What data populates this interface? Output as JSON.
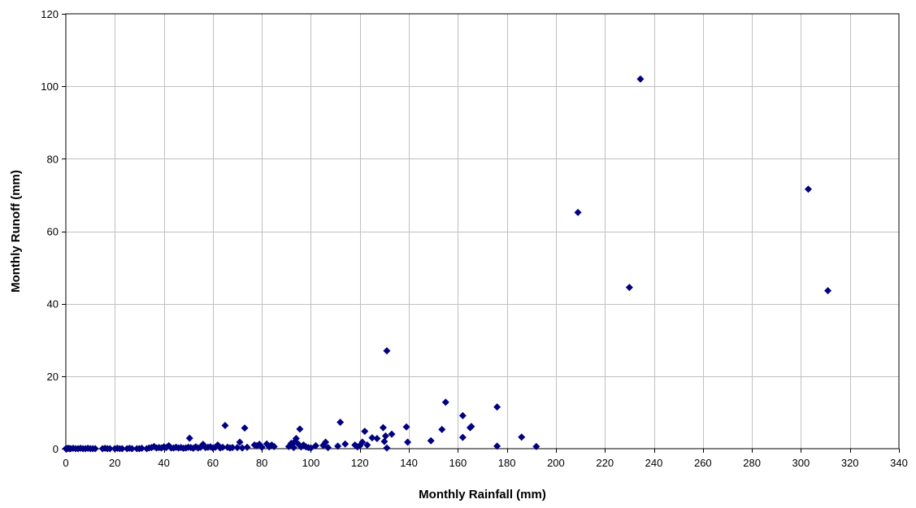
{
  "chart_data": {
    "type": "scatter",
    "xlabel": "Monthly Rainfall (mm)",
    "ylabel": "Monthly Runoff (mm)",
    "xlim": [
      0,
      340
    ],
    "ylim": [
      0,
      120
    ],
    "x_ticks": [
      0,
      20,
      40,
      60,
      80,
      100,
      120,
      140,
      160,
      180,
      200,
      220,
      240,
      260,
      280,
      300,
      320,
      340
    ],
    "y_ticks": [
      0,
      20,
      40,
      60,
      80,
      100,
      120
    ],
    "grid": true,
    "legend": "none",
    "marker": "diamond",
    "marker_color": "#000080",
    "series": [
      {
        "points": [
          [
            0,
            0
          ],
          [
            0.5,
            0
          ],
          [
            1,
            0.1
          ],
          [
            1.5,
            0
          ],
          [
            2,
            0
          ],
          [
            3,
            0.1
          ],
          [
            4,
            0
          ],
          [
            5,
            0
          ],
          [
            6,
            0.1
          ],
          [
            7,
            0
          ],
          [
            8,
            0
          ],
          [
            9,
            0.1
          ],
          [
            10,
            0
          ],
          [
            11,
            0
          ],
          [
            12,
            0
          ],
          [
            15,
            0
          ],
          [
            16,
            0.1
          ],
          [
            17,
            0
          ],
          [
            18,
            0
          ],
          [
            20,
            0
          ],
          [
            21,
            0.1
          ],
          [
            22,
            0
          ],
          [
            23,
            0
          ],
          [
            25,
            0
          ],
          [
            26,
            0.1
          ],
          [
            27,
            0
          ],
          [
            29,
            0
          ],
          [
            30,
            0
          ],
          [
            31,
            0.1
          ],
          [
            33,
            0
          ],
          [
            34,
            0.2
          ],
          [
            35,
            0.3
          ],
          [
            36,
            0.6
          ],
          [
            37,
            0.2
          ],
          [
            38,
            0.3
          ],
          [
            39,
            0.2
          ],
          [
            40,
            0.5
          ],
          [
            41,
            0.3
          ],
          [
            42,
            0.8
          ],
          [
            43,
            0.2
          ],
          [
            44,
            0.2
          ],
          [
            45,
            0.4
          ],
          [
            46,
            0.2
          ],
          [
            47,
            0.3
          ],
          [
            48,
            0.1
          ],
          [
            49,
            0.2
          ],
          [
            50,
            0.4
          ],
          [
            50.5,
            2.9
          ],
          [
            51,
            0.3
          ],
          [
            52,
            0.1
          ],
          [
            53,
            0.5
          ],
          [
            54,
            0.2
          ],
          [
            55,
            0.4
          ],
          [
            56,
            1.2
          ],
          [
            57,
            0.3
          ],
          [
            58,
            0.4
          ],
          [
            59,
            0.5
          ],
          [
            60,
            0.2
          ],
          [
            61,
            0.4
          ],
          [
            62,
            1.0
          ],
          [
            63,
            0.2
          ],
          [
            64,
            0.4
          ],
          [
            65,
            6.4
          ],
          [
            66,
            0.4
          ],
          [
            67,
            0.2
          ],
          [
            68,
            0.3
          ],
          [
            70,
            0.3
          ],
          [
            71,
            1.8
          ],
          [
            72,
            0.2
          ],
          [
            73,
            5.7
          ],
          [
            74,
            0.4
          ],
          [
            77,
            1.0
          ],
          [
            78,
            0.8
          ],
          [
            79,
            1.2
          ],
          [
            80,
            0.4
          ],
          [
            82,
            1.3
          ],
          [
            83,
            0.5
          ],
          [
            84,
            1.0
          ],
          [
            85,
            0.6
          ],
          [
            91,
            0.6
          ],
          [
            92,
            1.5
          ],
          [
            93,
            0.3
          ],
          [
            93.5,
            2.0
          ],
          [
            94,
            2.8
          ],
          [
            95,
            1.2
          ],
          [
            95.5,
            5.4
          ],
          [
            96,
            0.5
          ],
          [
            97,
            1.0
          ],
          [
            98,
            0.5
          ],
          [
            99,
            0.3
          ],
          [
            100,
            0.2
          ],
          [
            102,
            0.8
          ],
          [
            105,
            0.9
          ],
          [
            106,
            1.8
          ],
          [
            107,
            0.3
          ],
          [
            111,
            0.7
          ],
          [
            112,
            7.3
          ],
          [
            114,
            1.3
          ],
          [
            118,
            1.0
          ],
          [
            119,
            0.5
          ],
          [
            120,
            0.8
          ],
          [
            121,
            1.8
          ],
          [
            122,
            4.8
          ],
          [
            123,
            1.0
          ],
          [
            125,
            3.0
          ],
          [
            127,
            2.8
          ],
          [
            129.5,
            5.8
          ],
          [
            130,
            2.0
          ],
          [
            130.5,
            3.5
          ],
          [
            131,
            0.2
          ],
          [
            131,
            27.0
          ],
          [
            133,
            4.0
          ],
          [
            139,
            6.0
          ],
          [
            139.5,
            1.8
          ],
          [
            149,
            2.2
          ],
          [
            153.5,
            5.3
          ],
          [
            155,
            12.8
          ],
          [
            162,
            9.1
          ],
          [
            162,
            3.1
          ],
          [
            165,
            5.8
          ],
          [
            165.5,
            6.1
          ],
          [
            176,
            11.5
          ],
          [
            176,
            0.7
          ],
          [
            186,
            3.2
          ],
          [
            192,
            0.6
          ],
          [
            209,
            65.2
          ],
          [
            230,
            44.5
          ],
          [
            234.5,
            102.0
          ],
          [
            303,
            71.6
          ],
          [
            311,
            43.6
          ]
        ]
      }
    ]
  }
}
